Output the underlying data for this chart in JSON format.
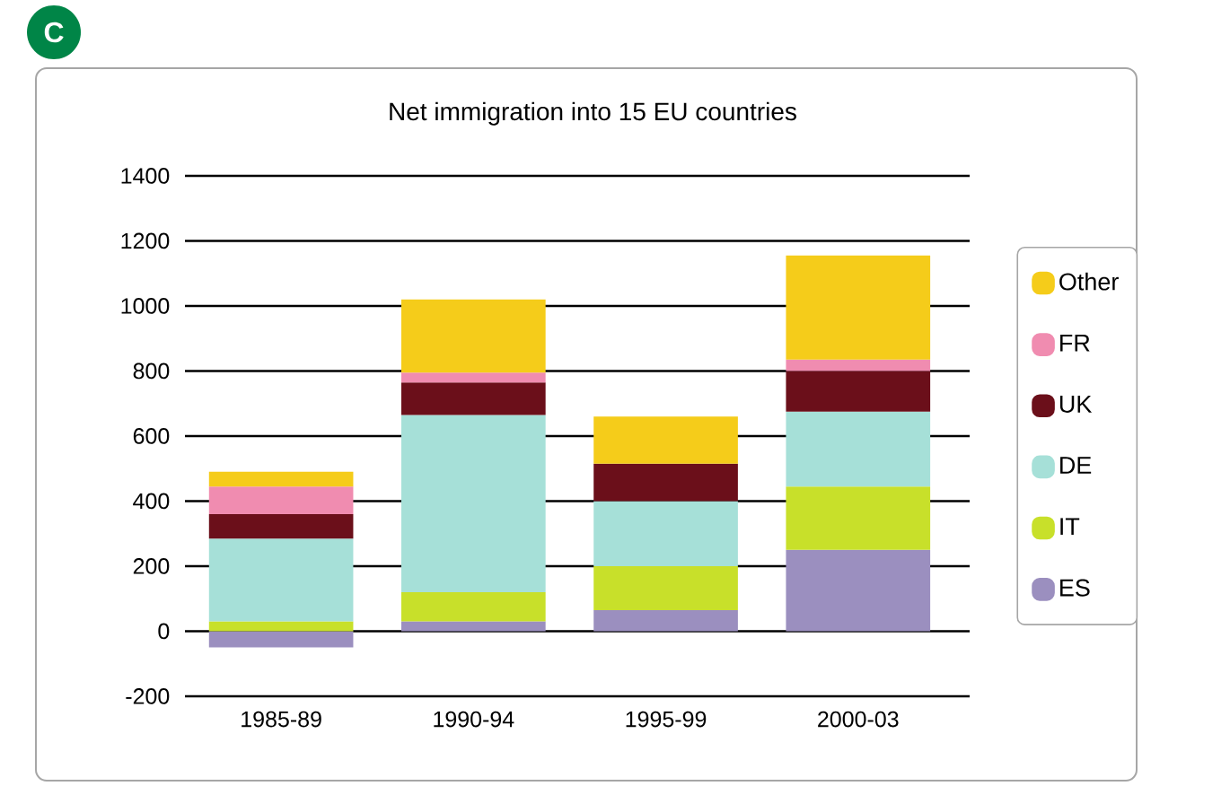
{
  "chart_data": {
    "type": "bar",
    "title": "Net immigration into 15 EU countries",
    "annotations": [
      "C"
    ],
    "categories": [
      "1985-89",
      "1990-94",
      "1995-99",
      "2000-03"
    ],
    "stacked": true,
    "series": [
      {
        "name": "ES",
        "color": "#9b8fbf",
        "values": [
          -50,
          30,
          65,
          250
        ]
      },
      {
        "name": "IT",
        "color": "#c8e02a",
        "values": [
          30,
          90,
          135,
          195
        ]
      },
      {
        "name": "DE",
        "color": "#a6e0d8",
        "values": [
          255,
          545,
          200,
          230
        ]
      },
      {
        "name": "UK",
        "color": "#6b0f1a",
        "values": [
          75,
          100,
          115,
          125
        ]
      },
      {
        "name": "FR",
        "color": "#f08cb0",
        "values": [
          85,
          30,
          0,
          35
        ]
      },
      {
        "name": "Other",
        "color": "#f5cc1a",
        "values": [
          45,
          225,
          145,
          320
        ]
      }
    ],
    "ylim": [
      -200,
      1400
    ],
    "yticks": [
      -200,
      0,
      200,
      400,
      600,
      800,
      1000,
      1200,
      1400
    ],
    "grid": "y",
    "legend": "right"
  }
}
